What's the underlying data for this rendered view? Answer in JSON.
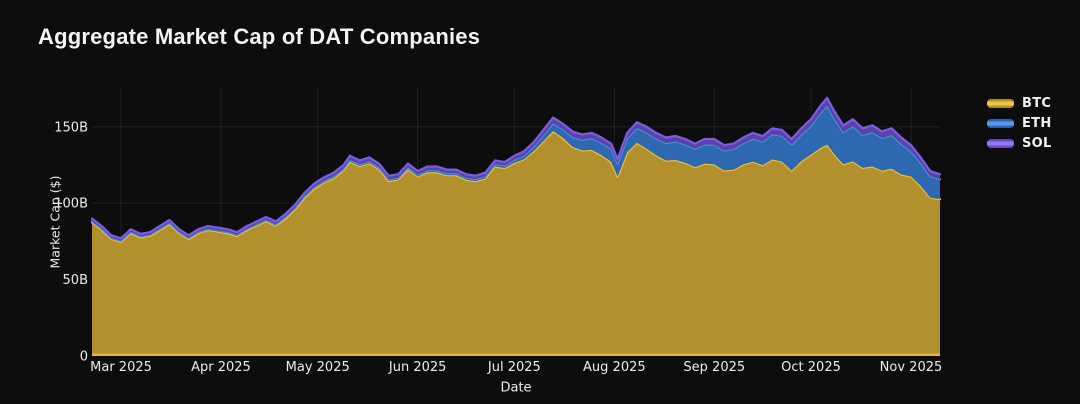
{
  "title": "Aggregate Market Cap of DAT Companies",
  "axes": {
    "y_title": "Market Cap ($)",
    "x_title": "Date",
    "y_ticks": [
      {
        "label": "0",
        "value": 0
      },
      {
        "label": "50B",
        "value": 50
      },
      {
        "label": "100B",
        "value": 100
      },
      {
        "label": "150B",
        "value": 150
      }
    ],
    "x_ticks": [
      {
        "label": "Mar 2025",
        "date": "2025-03-01"
      },
      {
        "label": "Apr 2025",
        "date": "2025-04-01"
      },
      {
        "label": "May 2025",
        "date": "2025-05-01"
      },
      {
        "label": "Jun 2025",
        "date": "2025-06-01"
      },
      {
        "label": "Jul 2025",
        "date": "2025-07-01"
      },
      {
        "label": "Aug 2025",
        "date": "2025-08-01"
      },
      {
        "label": "Sep 2025",
        "date": "2025-09-01"
      },
      {
        "label": "Oct 2025",
        "date": "2025-10-01"
      },
      {
        "label": "Nov 2025",
        "date": "2025-11-01"
      }
    ]
  },
  "legend": {
    "items": [
      {
        "label": "BTC",
        "edge": "#b68d1d",
        "core": "#ecc44c"
      },
      {
        "label": "ETH",
        "edge": "#2661b8",
        "core": "#5f97e8"
      },
      {
        "label": "SOL",
        "edge": "#6646c8",
        "core": "#9579ea"
      }
    ]
  },
  "colors": {
    "background": "#0d0d0e",
    "grid": "rgba(255,255,255,0.08)",
    "tick_text": "#ececec",
    "baseline": "#e8ba30"
  },
  "chart_data": {
    "type": "area",
    "stacked": true,
    "title": "Aggregate Market Cap of DAT Companies",
    "xlabel": "Date",
    "ylabel": "Market Cap ($)",
    "unit": "USD billions",
    "ylim": [
      0,
      175
    ],
    "grid": true,
    "legend_position": "top-right",
    "x": [
      "2025-02-20",
      "2025-02-23",
      "2025-02-26",
      "2025-03-01",
      "2025-03-04",
      "2025-03-07",
      "2025-03-10",
      "2025-03-13",
      "2025-03-16",
      "2025-03-19",
      "2025-03-22",
      "2025-03-25",
      "2025-03-28",
      "2025-03-31",
      "2025-04-03",
      "2025-04-06",
      "2025-04-09",
      "2025-04-12",
      "2025-04-15",
      "2025-04-18",
      "2025-04-21",
      "2025-04-24",
      "2025-04-27",
      "2025-04-30",
      "2025-05-03",
      "2025-05-06",
      "2025-05-09",
      "2025-05-11",
      "2025-05-14",
      "2025-05-17",
      "2025-05-20",
      "2025-05-23",
      "2025-05-26",
      "2025-05-29",
      "2025-06-01",
      "2025-06-04",
      "2025-06-07",
      "2025-06-10",
      "2025-06-13",
      "2025-06-16",
      "2025-06-19",
      "2025-06-22",
      "2025-06-25",
      "2025-06-28",
      "2025-07-01",
      "2025-07-04",
      "2025-07-07",
      "2025-07-10",
      "2025-07-13",
      "2025-07-16",
      "2025-07-19",
      "2025-07-22",
      "2025-07-25",
      "2025-07-28",
      "2025-07-31",
      "2025-08-02",
      "2025-08-05",
      "2025-08-08",
      "2025-08-11",
      "2025-08-14",
      "2025-08-17",
      "2025-08-20",
      "2025-08-23",
      "2025-08-26",
      "2025-08-29",
      "2025-09-01",
      "2025-09-04",
      "2025-09-07",
      "2025-09-10",
      "2025-09-13",
      "2025-09-16",
      "2025-09-19",
      "2025-09-22",
      "2025-09-25",
      "2025-09-28",
      "2025-10-01",
      "2025-10-04",
      "2025-10-06",
      "2025-10-08",
      "2025-10-11",
      "2025-10-14",
      "2025-10-17",
      "2025-10-20",
      "2025-10-23",
      "2025-10-26",
      "2025-10-29",
      "2025-11-01",
      "2025-11-04",
      "2025-11-07",
      "2025-11-10"
    ],
    "series": [
      {
        "name": "BTC",
        "fill": "#b1902d",
        "line": "#f0c235",
        "values": [
          87.5,
          82.5,
          76.6,
          74.6,
          80.5,
          77.6,
          78.6,
          82.4,
          86.3,
          80.4,
          76.6,
          80.4,
          82.4,
          81.4,
          80.4,
          78.5,
          82.4,
          85.3,
          88.2,
          85.2,
          90.1,
          96.0,
          103.8,
          109.7,
          113.6,
          116.5,
          121.4,
          127.2,
          124.3,
          126.2,
          122.3,
          114.5,
          115.5,
          122.3,
          117.4,
          120.2,
          120.2,
          118.3,
          118.3,
          115.3,
          114.4,
          116.2,
          124.1,
          123.0,
          126.4,
          128.8,
          134.0,
          140.6,
          147.2,
          142.8,
          136.9,
          134.5,
          134.9,
          131.5,
          127.1,
          117.3,
          133.4,
          139.5,
          135.7,
          131.3,
          127.9,
          128.3,
          126.4,
          123.5,
          125.9,
          125.3,
          121.4,
          121.9,
          125.3,
          127.2,
          124.8,
          128.6,
          127.2,
          121.3,
          127.6,
          131.8,
          136.2,
          138.3,
          132.6,
          125.5,
          127.3,
          123.1,
          124.0,
          121.2,
          122.6,
          118.8,
          117.5,
          111.3,
          103.6,
          102.7
        ]
      },
      {
        "name": "ETH",
        "fill": "#2d68b0",
        "line": "#4a8ce0",
        "values": [
          0.8,
          0.8,
          0.8,
          0.8,
          0.8,
          0.8,
          0.8,
          0.9,
          0.9,
          0.9,
          0.8,
          0.9,
          0.9,
          0.9,
          0.9,
          0.9,
          0.9,
          0.9,
          1.0,
          1.0,
          1.0,
          1.0,
          1.1,
          1.1,
          1.2,
          1.2,
          1.2,
          1.3,
          1.3,
          1.3,
          1.3,
          1.2,
          1.2,
          1.3,
          1.3,
          1.4,
          1.4,
          1.4,
          1.4,
          1.4,
          1.4,
          1.5,
          1.5,
          1.6,
          2.0,
          2.4,
          3.0,
          4.0,
          5.0,
          5.5,
          6.5,
          7.0,
          7.5,
          8.0,
          8.5,
          8.5,
          9.0,
          9.8,
          10.5,
          11.0,
          11.5,
          12.0,
          12.0,
          12.0,
          12.5,
          13.0,
          13.0,
          13.5,
          14.0,
          15.0,
          15.5,
          16.5,
          17.0,
          17.0,
          17.5,
          19.0,
          23.0,
          25.5,
          23.5,
          21.0,
          23.0,
          21.5,
          22.5,
          21.5,
          22.0,
          20.0,
          16.5,
          15.0,
          14.0,
          13.0
        ]
      },
      {
        "name": "SOL",
        "fill": "#5a43a8",
        "line": "#7e5ce0",
        "values": [
          1.7,
          1.7,
          1.6,
          1.6,
          1.7,
          1.6,
          1.6,
          1.7,
          1.8,
          1.7,
          1.6,
          1.7,
          1.7,
          1.7,
          1.7,
          1.6,
          1.7,
          1.8,
          1.8,
          1.8,
          1.9,
          2.0,
          2.1,
          2.2,
          2.2,
          2.3,
          2.4,
          2.5,
          2.4,
          2.5,
          2.4,
          2.3,
          2.3,
          2.4,
          2.3,
          2.4,
          2.4,
          2.3,
          2.3,
          2.3,
          2.2,
          2.3,
          2.4,
          2.4,
          2.6,
          2.8,
          3.0,
          3.4,
          3.8,
          3.7,
          3.6,
          3.5,
          3.6,
          3.5,
          3.4,
          3.2,
          3.6,
          3.7,
          3.8,
          3.7,
          3.6,
          3.7,
          3.6,
          3.5,
          3.6,
          3.7,
          3.6,
          3.6,
          3.7,
          3.8,
          3.7,
          3.9,
          3.8,
          3.7,
          3.9,
          4.2,
          4.8,
          5.2,
          4.9,
          4.5,
          4.7,
          4.4,
          4.5,
          4.3,
          4.4,
          4.2,
          4.0,
          3.7,
          3.4,
          3.3
        ]
      }
    ]
  }
}
